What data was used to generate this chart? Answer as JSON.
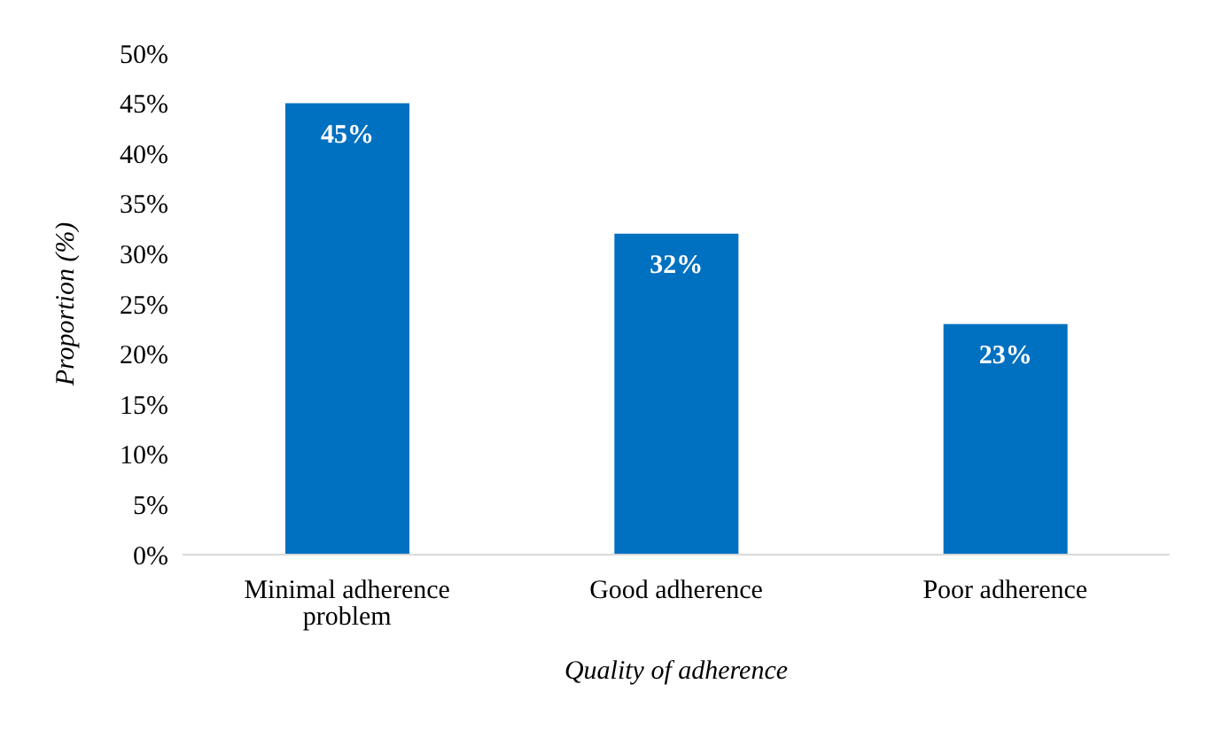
{
  "chart_data": {
    "type": "bar",
    "xlabel": "Quality of adherence",
    "ylabel": "Proportion (%)",
    "categories": [
      "Minimal adherence problem",
      "Good adherence",
      "Poor adherence"
    ],
    "values": [
      45,
      32,
      23
    ],
    "color": "#0070c0",
    "value_labels": [
      "45%",
      "32%",
      "23%"
    ],
    "ylim": [
      0,
      50
    ],
    "yticks": [
      {
        "value": 0,
        "label": "0%"
      },
      {
        "value": 5,
        "label": "5%"
      },
      {
        "value": 10,
        "label": "10%"
      },
      {
        "value": 15,
        "label": "15%"
      },
      {
        "value": 20,
        "label": "20%"
      },
      {
        "value": 25,
        "label": "25%"
      },
      {
        "value": 30,
        "label": "30%"
      },
      {
        "value": 35,
        "label": "35%"
      },
      {
        "value": 40,
        "label": "40%"
      },
      {
        "value": 45,
        "label": "45%"
      },
      {
        "value": 50,
        "label": "50%"
      }
    ],
    "grid": false,
    "legend": false
  }
}
